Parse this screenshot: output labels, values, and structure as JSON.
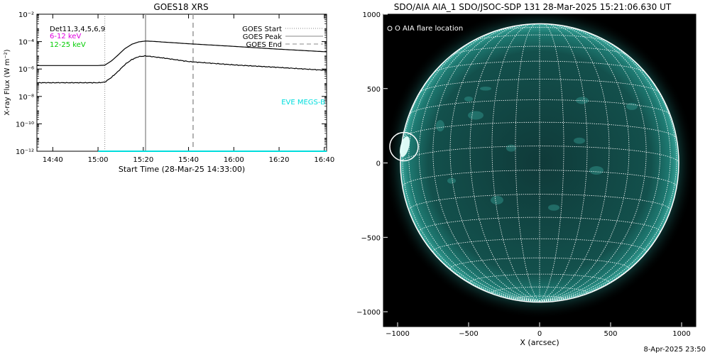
{
  "chart_data": [
    {
      "type": "line",
      "title": "GOES18 XRS",
      "xlabel": "Start Time (28-Mar-25 14:33:00)",
      "ylabel": "X-ray Flux (W m⁻²)",
      "ylog": true,
      "ylim": [
        1e-12,
        0.01
      ],
      "xlim": [
        "14:33",
        "16:41"
      ],
      "x_ticks": [
        "14:40",
        "15:00",
        "15:20",
        "15:40",
        "16:00",
        "16:20",
        "16:40"
      ],
      "y_ticks": [
        "10⁻¹²",
        "10⁻¹⁰",
        "10⁻⁸",
        "10⁻⁶",
        "10⁻⁴",
        "10⁻²"
      ],
      "legend_left": [
        {
          "label": "Det11,3,4,5,6,9",
          "color": "#000000"
        },
        {
          "label": "6-12 keV",
          "color": "#e000e0"
        },
        {
          "label": "12-25 keV",
          "color": "#00cc00"
        }
      ],
      "legend_right": [
        {
          "label": "GOES Start",
          "style": "dotted"
        },
        {
          "label": "GOES Peak",
          "style": "solid"
        },
        {
          "label": "GOES End",
          "style": "dashed"
        }
      ],
      "markers": {
        "goes_start": "15:03",
        "goes_peak": "15:21",
        "goes_end": "15:42"
      },
      "annotation": "EVE MEGS-B",
      "series": [
        {
          "color": "#000000",
          "x": [
            "14:33",
            "15:00",
            "15:03",
            "15:06",
            "15:09",
            "15:12",
            "15:15",
            "15:18",
            "15:21",
            "15:24",
            "15:30",
            "15:40",
            "16:00",
            "16:20",
            "16:41"
          ],
          "values": [
            1.8e-06,
            1.8e-06,
            1.9e-06,
            4e-06,
            1.1e-05,
            3.2e-05,
            6.5e-05,
            9.5e-05,
            0.00011,
            0.000105,
            9e-05,
            7e-05,
            4.5e-05,
            2.8e-05,
            1.8e-05
          ]
        },
        {
          "color": "#000000",
          "x": [
            "14:33",
            "15:00",
            "15:03",
            "15:06",
            "15:09",
            "15:12",
            "15:15",
            "15:18",
            "15:21",
            "15:24",
            "15:30",
            "15:40",
            "16:00",
            "16:20",
            "16:41"
          ],
          "values": [
            1e-07,
            1e-07,
            1.1e-07,
            2.5e-07,
            7e-07,
            2.2e-06,
            5e-06,
            8e-06,
            9e-06,
            8e-06,
            6e-06,
            3.5e-06,
            2e-06,
            1.3e-06,
            8e-07
          ]
        },
        {
          "color": "#00dddd",
          "x": [
            "15:00",
            "16:41"
          ],
          "values": [
            1e-12,
            1e-12
          ]
        }
      ]
    },
    {
      "type": "image",
      "title": "SDO/AIA AIA_1 SDO/JSOC-SDP 131 28-Mar-2025 15:21:06.630 UT",
      "xlabel": "X (arcsec)",
      "xlim": [
        -1100,
        1100
      ],
      "ylim": [
        -1100,
        1000
      ],
      "x_ticks": [
        "−1000",
        "−500",
        "0",
        "500",
        "1000"
      ],
      "y_ticks": [
        "−1000",
        "−500",
        "0",
        "500",
        "1000"
      ],
      "legend": "O AIA flare location",
      "flare_location": {
        "x": -955,
        "y": 110
      }
    }
  ],
  "footer": "8-Apr-2025 23:50"
}
